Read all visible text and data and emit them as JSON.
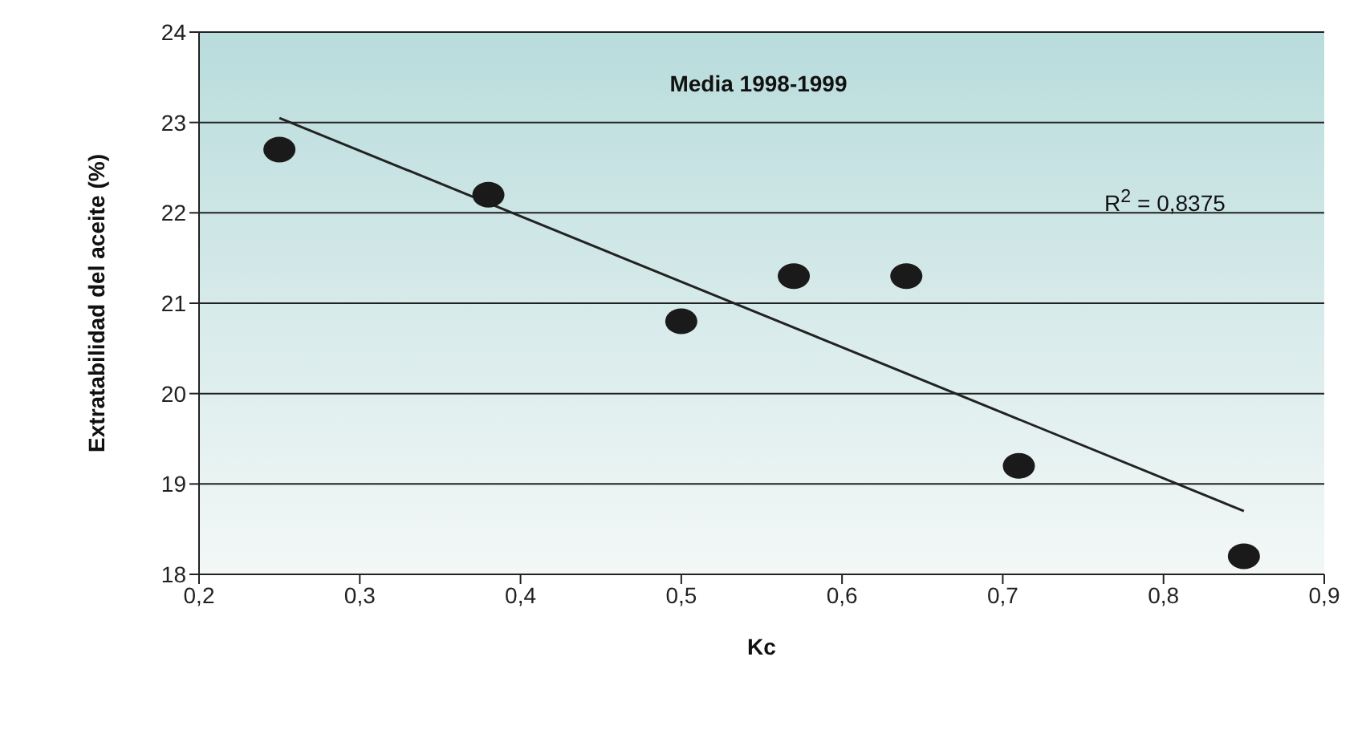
{
  "chart_data": {
    "type": "scatter",
    "title": "Media 1998-1999",
    "xlabel": "Kc",
    "ylabel": "Extratabilidad del aceite  (%)",
    "annotations": [
      "R$^{2}$ = 0,8375"
    ],
    "xlim": [
      0.2,
      0.9
    ],
    "xticks": [
      {
        "value": 0.2,
        "label": "0,2"
      },
      {
        "value": 0.3,
        "label": "0,3"
      },
      {
        "value": 0.4,
        "label": "0,4"
      },
      {
        "value": 0.5,
        "label": "0,5"
      },
      {
        "value": 0.6,
        "label": "0,6"
      },
      {
        "value": 0.7,
        "label": "0,7"
      },
      {
        "value": 0.8,
        "label": "0,8"
      },
      {
        "value": 0.9,
        "label": "0,9"
      }
    ],
    "ylim": [
      18,
      24
    ],
    "yticks": [
      18,
      19,
      20,
      21,
      22,
      23,
      24
    ],
    "grid": "y",
    "x": [
      0.25,
      0.38,
      0.5,
      0.57,
      0.64,
      0.71,
      0.85
    ],
    "series": [
      {
        "color": "#1a1a1a",
        "marker": "circle",
        "values": [
          22.7,
          22.2,
          20.8,
          21.3,
          21.3,
          19.2,
          18.2
        ]
      },
      {
        "type": "line",
        "color": "#222222",
        "marker": "none",
        "x": [
          0.25,
          0.85
        ],
        "values": [
          23.05,
          18.7
        ]
      }
    ]
  }
}
